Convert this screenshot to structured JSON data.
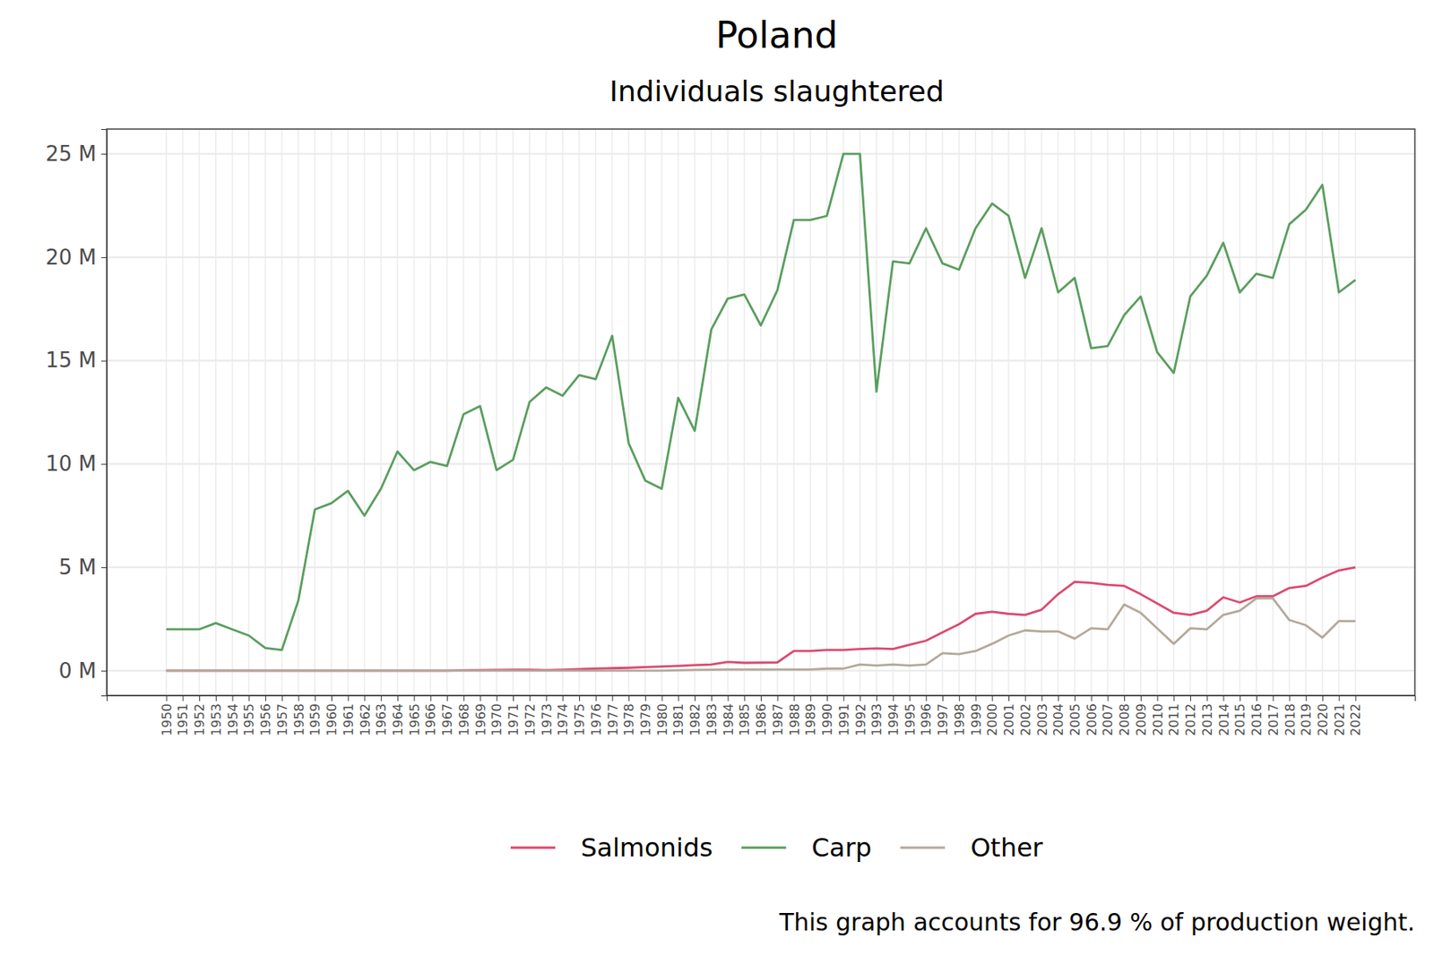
{
  "chart_data": {
    "type": "line",
    "title": "Poland",
    "subtitle": "Individuals slaughtered",
    "caption": "This graph accounts for 96.9 % of production weight.",
    "categories": [
      "1950",
      "1951",
      "1952",
      "1953",
      "1954",
      "1955",
      "1956",
      "1957",
      "1958",
      "1959",
      "1960",
      "1961",
      "1962",
      "1963",
      "1964",
      "1965",
      "1966",
      "1967",
      "1968",
      "1969",
      "1970",
      "1971",
      "1972",
      "1973",
      "1974",
      "1975",
      "1976",
      "1977",
      "1978",
      "1979",
      "1980",
      "1981",
      "1982",
      "1983",
      "1984",
      "1985",
      "1986",
      "1987",
      "1988",
      "1989",
      "1990",
      "1991",
      "1992",
      "1993",
      "1994",
      "1995",
      "1996",
      "1997",
      "1998",
      "1999",
      "2000",
      "2001",
      "2002",
      "2003",
      "2004",
      "2005",
      "2006",
      "2007",
      "2008",
      "2009",
      "2010",
      "2011",
      "2012",
      "2013",
      "2014",
      "2015",
      "2016",
      "2017",
      "2018",
      "2019",
      "2020",
      "2021",
      "2022"
    ],
    "series": [
      {
        "name": "Salmonids",
        "color": "#dc4a70",
        "values": [
          0,
          0,
          0,
          0,
          0,
          0,
          0,
          0,
          0,
          0,
          0,
          0,
          0,
          0,
          0,
          0,
          0,
          0,
          0.02,
          0.03,
          0.04,
          0.05,
          0.05,
          0.03,
          0.05,
          0.08,
          0.1,
          0.12,
          0.14,
          0.17,
          0.2,
          0.23,
          0.27,
          0.3,
          0.42,
          0.38,
          0.39,
          0.4,
          0.95,
          0.95,
          1.0,
          1.0,
          1.05,
          1.08,
          1.05,
          1.25,
          1.45,
          1.85,
          2.25,
          2.75,
          2.85,
          2.75,
          2.7,
          2.95,
          3.7,
          4.3,
          4.25,
          4.15,
          4.1,
          3.7,
          3.25,
          2.8,
          2.7,
          2.9,
          3.55,
          3.3,
          3.6,
          3.6,
          4.0,
          4.1,
          4.5,
          4.85,
          5.0
        ]
      },
      {
        "name": "Carp",
        "color": "#5a9e5e",
        "values": [
          2.0,
          2.0,
          2.0,
          2.3,
          2.0,
          1.7,
          1.1,
          1.0,
          3.4,
          7.8,
          8.1,
          8.7,
          7.5,
          8.8,
          10.6,
          9.7,
          10.1,
          9.9,
          12.4,
          12.8,
          9.7,
          10.2,
          13.0,
          13.7,
          13.3,
          14.3,
          14.1,
          16.2,
          11.0,
          9.2,
          8.8,
          13.2,
          11.6,
          16.5,
          18.0,
          18.2,
          16.7,
          18.4,
          21.8,
          21.8,
          22.0,
          25.0,
          25.0,
          13.5,
          19.8,
          19.7,
          21.4,
          19.7,
          19.4,
          21.4,
          22.6,
          22.0,
          19.0,
          21.4,
          18.3,
          19.0,
          15.6,
          15.7,
          17.2,
          18.1,
          15.4,
          14.4,
          18.1,
          19.1,
          20.7,
          18.3,
          19.2,
          19.0,
          21.6,
          22.3,
          23.5,
          18.3,
          18.9
        ]
      },
      {
        "name": "Other",
        "color": "#b5a89b",
        "values": [
          0,
          0,
          0,
          0,
          0,
          0,
          0,
          0,
          0,
          0,
          0,
          0,
          0,
          0,
          0,
          0,
          0,
          0,
          0,
          0,
          0,
          0,
          0,
          0,
          0,
          0,
          0,
          0,
          0,
          0,
          0,
          0.02,
          0.04,
          0.05,
          0.06,
          0.06,
          0.06,
          0.06,
          0.06,
          0.06,
          0.1,
          0.1,
          0.3,
          0.25,
          0.3,
          0.25,
          0.3,
          0.85,
          0.8,
          0.95,
          1.3,
          1.7,
          1.95,
          1.9,
          1.9,
          1.55,
          2.05,
          2.0,
          3.2,
          2.8,
          2.05,
          1.3,
          2.05,
          2.0,
          2.7,
          2.9,
          3.5,
          3.5,
          2.45,
          2.2,
          1.6,
          2.4,
          2.4
        ]
      }
    ],
    "ylim": [
      -1.2,
      26.2
    ],
    "yticks": [
      {
        "value": 0,
        "label": "0 M"
      },
      {
        "value": 5,
        "label": "5 M"
      },
      {
        "value": 10,
        "label": "10 M"
      },
      {
        "value": 15,
        "label": "15 M"
      },
      {
        "value": 20,
        "label": "20 M"
      },
      {
        "value": 25,
        "label": "25 M"
      }
    ],
    "grid": true,
    "legend": "bottom"
  }
}
